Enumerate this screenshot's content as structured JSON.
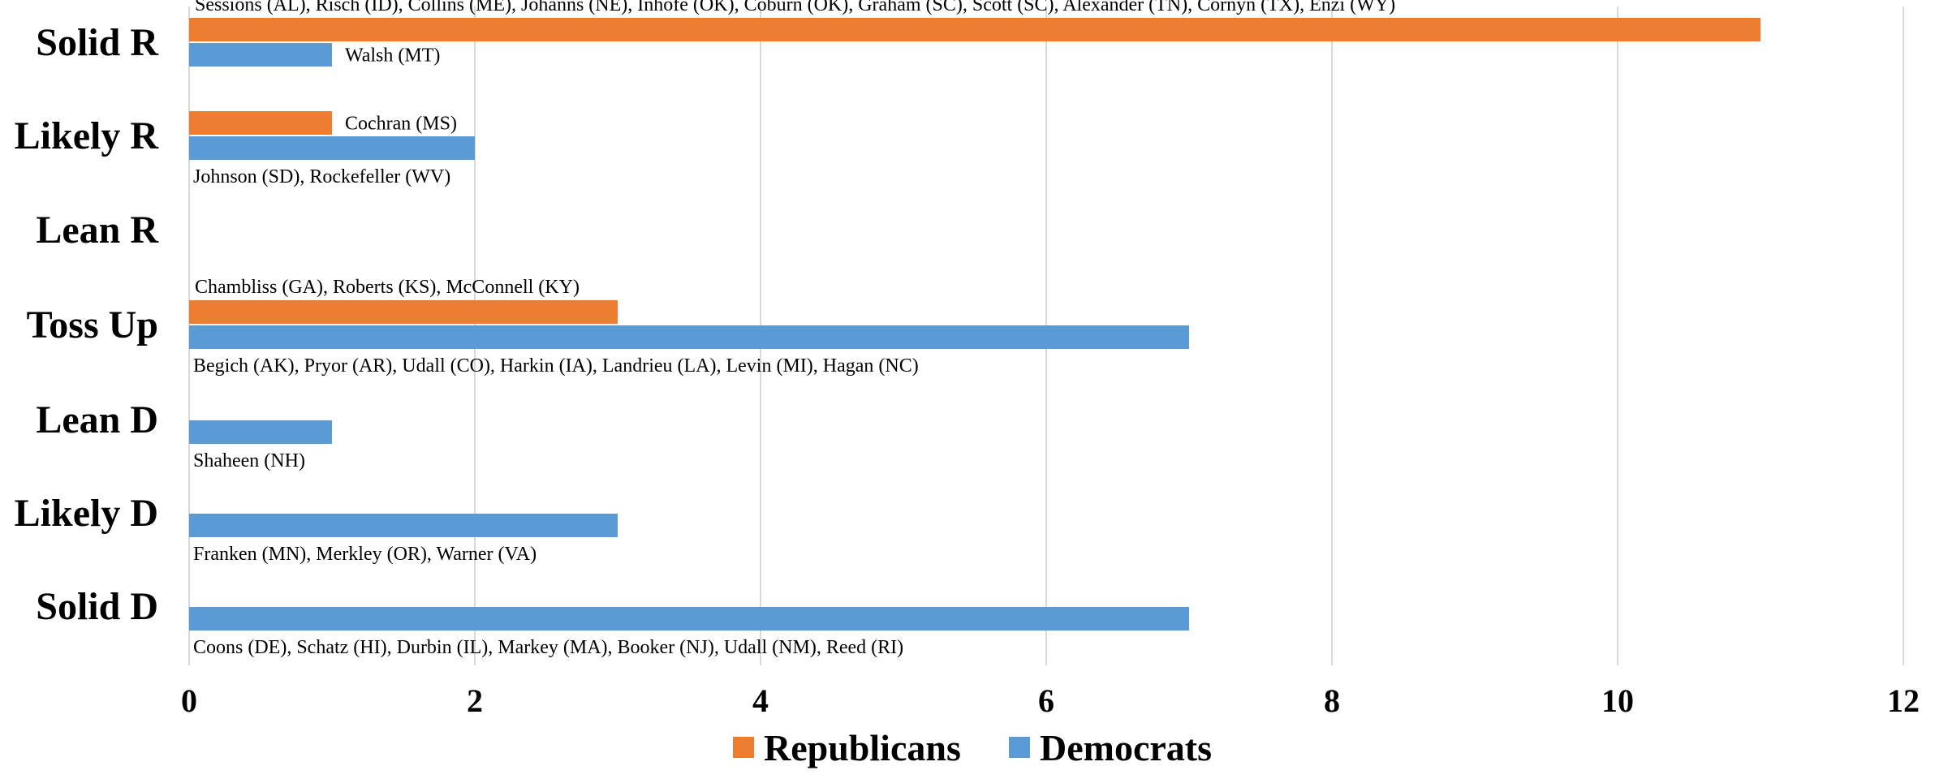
{
  "chart_data": {
    "type": "bar",
    "orientation": "horizontal",
    "categories": [
      "Solid R",
      "Likely R",
      "Lean R",
      "Toss Up",
      "Lean D",
      "Likely D",
      "Solid D"
    ],
    "series": [
      {
        "name": "Republicans",
        "color": "#ed7d31",
        "values": [
          11,
          1,
          0,
          3,
          0,
          0,
          0
        ],
        "labels": [
          "Sessions (AL), Risch (ID), Collins (ME), Johanns (NE), Inhofe (OK), Coburn (OK), Graham (SC), Scott (SC), Alexander (TN), Cornyn (TX), Enzi (WY)",
          "Cochran (MS)",
          "",
          "Chambliss (GA), Roberts (KS), McConnell (KY)",
          "",
          "",
          ""
        ]
      },
      {
        "name": "Democrats",
        "color": "#5b9bd5",
        "values": [
          1,
          2,
          0,
          7,
          1,
          3,
          7
        ],
        "labels": [
          "Walsh (MT)",
          "Johnson (SD), Rockefeller (WV)",
          "",
          "Begich (AK), Pryor (AR), Udall (CO), Harkin (IA), Landrieu (LA), Levin (MI), Hagan (NC)",
          "Shaheen (NH)",
          "Franken (MN), Merkley (OR), Warner (VA)",
          "Coons (DE), Schatz (HI), Durbin (IL), Markey (MA), Booker (NJ), Udall (NM), Reed (RI)"
        ]
      }
    ],
    "xlim": [
      0,
      12
    ],
    "xticks": [
      "0",
      "2",
      "4",
      "6",
      "8",
      "10",
      "12"
    ],
    "grid": true,
    "legend_position": "bottom",
    "title": "",
    "xlabel": "",
    "ylabel": ""
  }
}
